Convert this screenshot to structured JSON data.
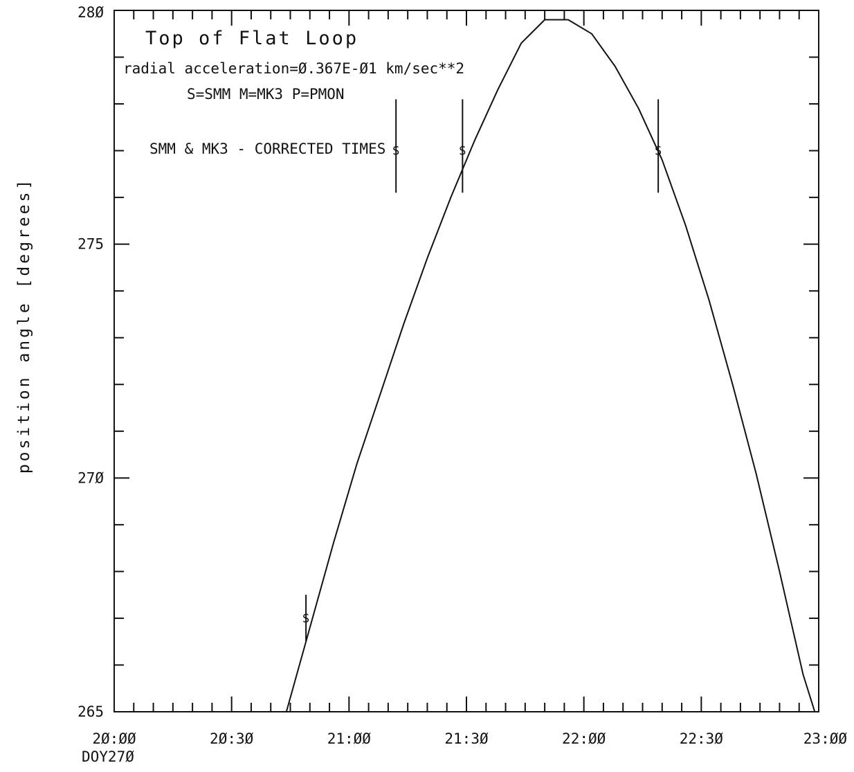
{
  "chart_data": {
    "type": "line",
    "title": "Top of Flat Loop",
    "annotations": [
      "radial acceleration=Ø.367E-Ø1  km/sec**2",
      "S=SMM  M=MK3  P=PMON",
      "SMM & MK3 - CORRECTED TIMES"
    ],
    "xlabel": "",
    "xlabel_sub": "DOY27Ø",
    "ylabel": "position angle [degrees]",
    "xlim_minutes_after_20h": [
      0,
      180
    ],
    "ylim": [
      265,
      280
    ],
    "x_ticks": [
      {
        "label": "2Ø:ØØ",
        "value": 0
      },
      {
        "label": "2Ø:3Ø",
        "value": 30
      },
      {
        "label": "21:ØØ",
        "value": 60
      },
      {
        "label": "21:3Ø",
        "value": 90
      },
      {
        "label": "22:ØØ",
        "value": 120
      },
      {
        "label": "22:3Ø",
        "value": 150
      },
      {
        "label": "23:ØØ",
        "value": 180
      }
    ],
    "y_ticks": [
      {
        "label": "265",
        "value": 265
      },
      {
        "label": "27Ø",
        "value": 270
      },
      {
        "label": "275",
        "value": 275
      },
      {
        "label": "28Ø",
        "value": 280
      }
    ],
    "x_minor_step": 5,
    "y_minor_step": 1,
    "fit_curve": {
      "x": [
        44,
        50,
        56,
        62,
        68,
        74,
        80,
        86,
        92,
        98,
        104,
        110,
        116,
        122,
        128,
        134,
        140,
        146,
        152,
        158,
        164,
        170,
        176,
        179
      ],
      "y": [
        265.0,
        266.8,
        268.6,
        270.3,
        271.8,
        273.3,
        274.7,
        276.0,
        277.2,
        278.3,
        279.3,
        279.8,
        279.8,
        279.5,
        278.8,
        277.9,
        276.8,
        275.4,
        273.8,
        272.0,
        270.1,
        268.0,
        265.8,
        265.0
      ]
    },
    "series": [
      {
        "points": [
          {
            "x": 49,
            "y": 267.0,
            "err_low": 266.5,
            "err_high": 267.5,
            "marker": "S"
          },
          {
            "x": 72,
            "y": 277.0,
            "err_low": 276.1,
            "err_high": 278.1,
            "marker": "S"
          },
          {
            "x": 89,
            "y": 277.0,
            "err_low": 276.1,
            "err_high": 278.1,
            "marker": "S"
          },
          {
            "x": 139,
            "y": 277.0,
            "err_low": 276.1,
            "err_high": 278.1,
            "marker": "S"
          }
        ]
      }
    ],
    "grid": false,
    "legend": "none"
  }
}
